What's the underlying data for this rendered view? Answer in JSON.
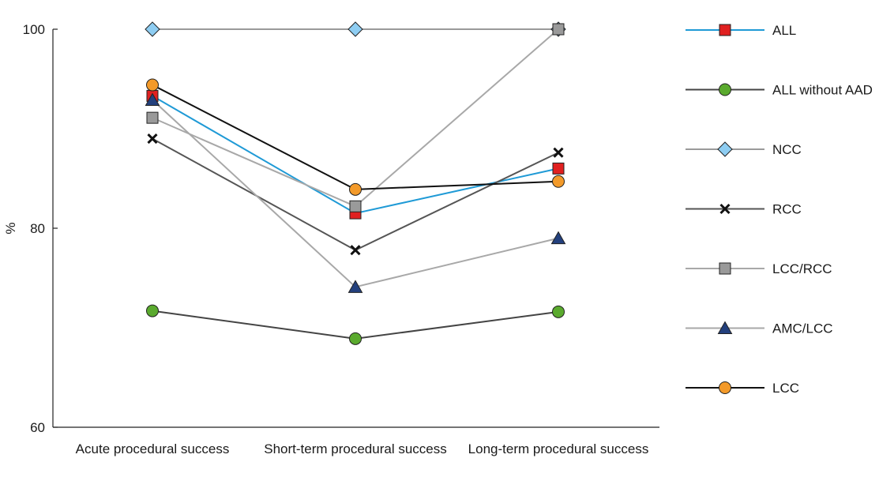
{
  "chart_data": {
    "type": "line",
    "title": "",
    "xlabel": "",
    "ylabel": "%",
    "ylim": [
      60,
      100
    ],
    "yticks": [
      60,
      80,
      100
    ],
    "grid": false,
    "legend": "right",
    "categories": [
      "Acute procedural success",
      "Short-term procedural success",
      "Long-term procedural success"
    ],
    "series": [
      {
        "name": "ALL",
        "values": [
          93.3,
          81.5,
          86.0
        ],
        "line_color": "#1f9ad6",
        "marker": "square",
        "marker_color": "#e02020"
      },
      {
        "name": "ALL without AAD",
        "values": [
          71.7,
          68.9,
          71.6
        ],
        "line_color": "#444444",
        "marker": "circle",
        "marker_color": "#5aaa2e"
      },
      {
        "name": "NCC",
        "values": [
          100.0,
          100.0,
          100.0
        ],
        "line_color": "#9a9a9a",
        "marker": "diamond",
        "marker_color": "#8ecdf2"
      },
      {
        "name": "RCC",
        "values": [
          89.0,
          77.8,
          87.6
        ],
        "line_color": "#555555",
        "marker": "x",
        "marker_color": "#111111"
      },
      {
        "name": "LCC/RCC",
        "values": [
          91.1,
          82.2,
          100.0
        ],
        "line_color": "#a8a8a8",
        "marker": "square",
        "marker_color": "#9a9a9a"
      },
      {
        "name": "AMC/LCC",
        "values": [
          92.9,
          74.1,
          79.0
        ],
        "line_color": "#a8a8a8",
        "marker": "triangle",
        "marker_color": "#23407d"
      },
      {
        "name": "LCC",
        "values": [
          94.4,
          83.9,
          84.7
        ],
        "line_color": "#111111",
        "marker": "circle",
        "marker_color": "#f39a2a"
      }
    ]
  }
}
